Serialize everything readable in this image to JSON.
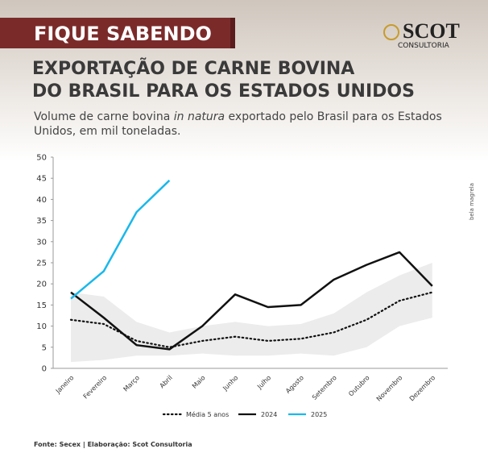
{
  "badge": "FIQUE SABENDO",
  "logo": {
    "name": "SCOT",
    "tagline": "CONSULTORIA"
  },
  "photo_credit": "bela magrela",
  "source": "Fonte: Secex | Elaboração: Scot Consultoria",
  "chart_data": {
    "type": "line",
    "title": [
      "EXPORTAÇÃO DE CARNE BOVINA",
      "DO BRASIL PARA OS ESTADOS UNIDOS"
    ],
    "subtitle": [
      "Volume de carne bovina ",
      "in natura",
      " exportado pelo Brasil para os Estados",
      "Unidos, em mil toneladas."
    ],
    "categories": [
      "Janeiro",
      "Fevereiro",
      "Março",
      "Abril",
      "Maio",
      "Junho",
      "Julho",
      "Agosto",
      "Setembro",
      "Outubro",
      "Novembro",
      "Dezembro"
    ],
    "ylim": [
      0,
      50
    ],
    "yticks": [
      0,
      5,
      10,
      15,
      20,
      25,
      30,
      35,
      40,
      45,
      50
    ],
    "grid": false,
    "band": {
      "color": "#ececec",
      "upper": [
        18,
        17,
        11,
        8.5,
        10,
        11,
        10,
        10.5,
        13,
        18,
        22,
        25
      ],
      "lower": [
        1.5,
        2,
        3,
        3,
        3.5,
        3,
        3,
        3.5,
        3,
        5,
        10,
        12
      ]
    },
    "series": [
      {
        "name": "Média 5 anos",
        "color": "#111111",
        "style": "dotted",
        "values": [
          11.5,
          10.5,
          6.5,
          5,
          6.5,
          7.5,
          6.5,
          7,
          8.5,
          11.5,
          16,
          18
        ]
      },
      {
        "name": "2024",
        "color": "#111111",
        "style": "solid",
        "values": [
          18,
          12,
          5.5,
          4.5,
          10,
          17.5,
          14.5,
          15,
          21,
          24.5,
          27.5,
          19.5
        ]
      },
      {
        "name": "2025",
        "color": "#1ab8ea",
        "style": "solid",
        "values": [
          16.5,
          23,
          37,
          44.5,
          null,
          null,
          null,
          null,
          null,
          null,
          null,
          null
        ]
      }
    ]
  }
}
